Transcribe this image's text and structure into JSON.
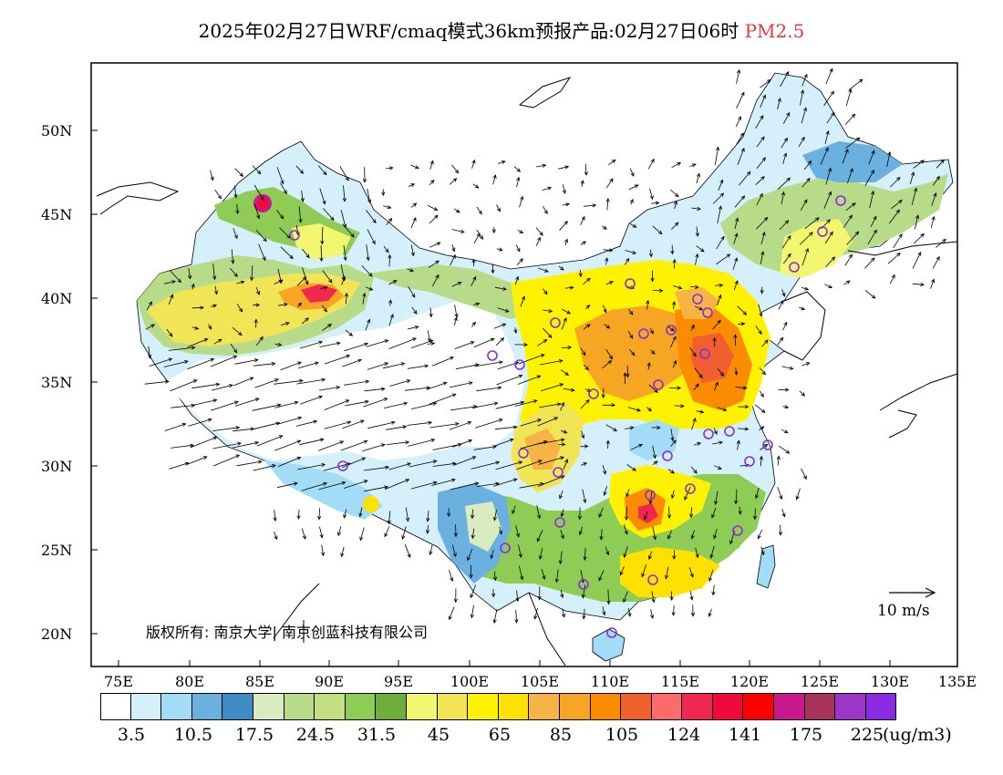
{
  "title": {
    "main": "2025年02月27日WRF/cmaq模式36km预报产品:02月27日06时",
    "species": "PM2.5"
  },
  "axes": {
    "lat_labels": [
      "50N",
      "45N",
      "40N",
      "35N",
      "30N",
      "25N",
      "20N"
    ],
    "lon_labels": [
      "75E",
      "80E",
      "85E",
      "90E",
      "95E",
      "100E",
      "105E",
      "110E",
      "115E",
      "120E",
      "125E",
      "130E",
      "135E"
    ]
  },
  "colorbar": {
    "colors": [
      "#ffffff",
      "#d6f0fb",
      "#a2dcf6",
      "#6bb1e0",
      "#3f8bc6",
      "#d9ecc0",
      "#b8db8a",
      "#c3e081",
      "#8fcc55",
      "#6eae3a",
      "#f3f770",
      "#f1e556",
      "#fff200",
      "#ffe100",
      "#f7b446",
      "#f6a623",
      "#fb8c00",
      "#f05f2d",
      "#ff6b6b",
      "#f0284f",
      "#f00a3c",
      "#ff0000",
      "#c8188c",
      "#a8325a",
      "#9b37c8",
      "#8a2be2"
    ],
    "labels": [
      "3.5",
      "10.5",
      "17.5",
      "24.5",
      "31.5",
      "45",
      "65",
      "85",
      "105",
      "124",
      "141",
      "175",
      "225"
    ],
    "unit": "(ug/m3)"
  },
  "copyright": "版权所有: 南京大学| 南京创蓝科技有限公司",
  "wind_scale": "10 m/s"
}
